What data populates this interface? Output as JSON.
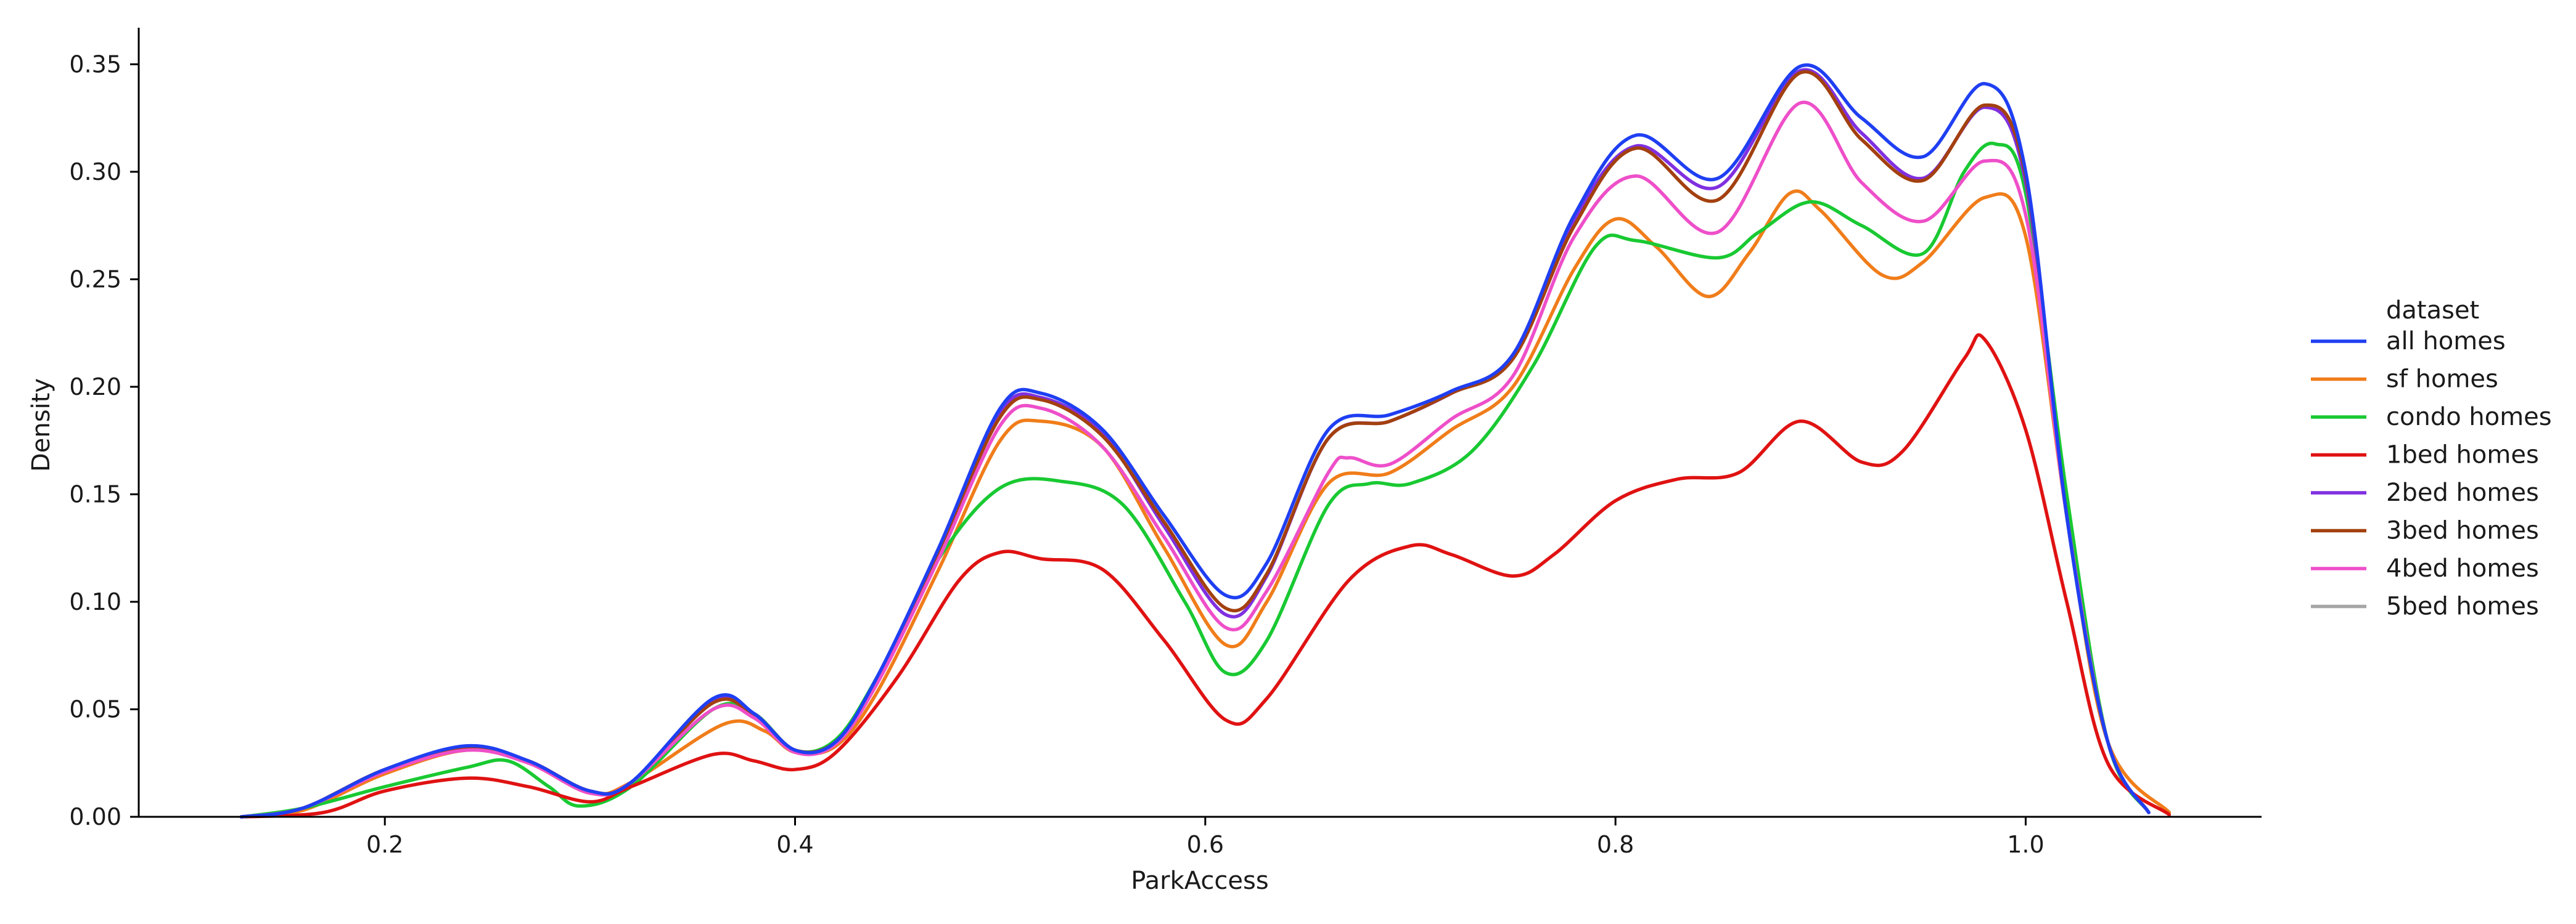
{
  "chart_data": {
    "type": "line",
    "xlabel": "ParkAccess",
    "ylabel": "Density",
    "xlim": [
      0.08,
      1.115
    ],
    "ylim": [
      0,
      0.367
    ],
    "xticks": [
      0.2,
      0.4,
      0.6,
      0.8,
      1.0
    ],
    "xtick_labels": [
      "0.2",
      "0.4",
      "0.6",
      "0.8",
      "1.0"
    ],
    "yticks": [
      0.0,
      0.05,
      0.1,
      0.15,
      0.2,
      0.25,
      0.3,
      0.35
    ],
    "ytick_labels": [
      "0.00",
      "0.05",
      "0.10",
      "0.15",
      "0.20",
      "0.25",
      "0.30",
      "0.35"
    ],
    "grid": false,
    "legend": {
      "title": "dataset",
      "placement": "center-right outside"
    },
    "series": [
      {
        "name": "all homes",
        "color": "#1f3ff2",
        "points": [
          [
            0.13,
            0.0
          ],
          [
            0.16,
            0.004
          ],
          [
            0.2,
            0.022
          ],
          [
            0.24,
            0.033
          ],
          [
            0.27,
            0.026
          ],
          [
            0.3,
            0.012
          ],
          [
            0.32,
            0.016
          ],
          [
            0.36,
            0.055
          ],
          [
            0.38,
            0.048
          ],
          [
            0.4,
            0.031
          ],
          [
            0.42,
            0.035
          ],
          [
            0.44,
            0.065
          ],
          [
            0.47,
            0.125
          ],
          [
            0.5,
            0.19
          ],
          [
            0.52,
            0.197
          ],
          [
            0.55,
            0.18
          ],
          [
            0.58,
            0.14
          ],
          [
            0.61,
            0.103
          ],
          [
            0.63,
            0.118
          ],
          [
            0.66,
            0.18
          ],
          [
            0.69,
            0.187
          ],
          [
            0.72,
            0.198
          ],
          [
            0.75,
            0.215
          ],
          [
            0.78,
            0.28
          ],
          [
            0.81,
            0.317
          ],
          [
            0.85,
            0.297
          ],
          [
            0.89,
            0.349
          ],
          [
            0.92,
            0.325
          ],
          [
            0.95,
            0.307
          ],
          [
            0.98,
            0.341
          ],
          [
            1.0,
            0.3
          ],
          [
            1.02,
            0.14
          ],
          [
            1.04,
            0.035
          ],
          [
            1.06,
            0.002
          ]
        ]
      },
      {
        "name": "sf homes",
        "color": "#f07d1a",
        "points": [
          [
            0.13,
            0.0
          ],
          [
            0.16,
            0.003
          ],
          [
            0.2,
            0.02
          ],
          [
            0.24,
            0.031
          ],
          [
            0.27,
            0.025
          ],
          [
            0.3,
            0.011
          ],
          [
            0.32,
            0.016
          ],
          [
            0.365,
            0.043
          ],
          [
            0.385,
            0.04
          ],
          [
            0.4,
            0.03
          ],
          [
            0.42,
            0.033
          ],
          [
            0.44,
            0.058
          ],
          [
            0.47,
            0.115
          ],
          [
            0.5,
            0.175
          ],
          [
            0.52,
            0.184
          ],
          [
            0.55,
            0.172
          ],
          [
            0.58,
            0.125
          ],
          [
            0.61,
            0.08
          ],
          [
            0.63,
            0.1
          ],
          [
            0.66,
            0.155
          ],
          [
            0.69,
            0.16
          ],
          [
            0.72,
            0.18
          ],
          [
            0.75,
            0.2
          ],
          [
            0.78,
            0.255
          ],
          [
            0.8,
            0.278
          ],
          [
            0.82,
            0.265
          ],
          [
            0.845,
            0.242
          ],
          [
            0.865,
            0.262
          ],
          [
            0.885,
            0.29
          ],
          [
            0.9,
            0.282
          ],
          [
            0.93,
            0.252
          ],
          [
            0.95,
            0.258
          ],
          [
            0.98,
            0.288
          ],
          [
            1.0,
            0.27
          ],
          [
            1.02,
            0.14
          ],
          [
            1.04,
            0.035
          ],
          [
            1.07,
            0.002
          ]
        ]
      },
      {
        "name": "condo homes",
        "color": "#19c932",
        "points": [
          [
            0.13,
            0.0
          ],
          [
            0.16,
            0.004
          ],
          [
            0.2,
            0.014
          ],
          [
            0.24,
            0.023
          ],
          [
            0.26,
            0.026
          ],
          [
            0.28,
            0.014
          ],
          [
            0.295,
            0.005
          ],
          [
            0.32,
            0.014
          ],
          [
            0.36,
            0.05
          ],
          [
            0.38,
            0.048
          ],
          [
            0.4,
            0.031
          ],
          [
            0.42,
            0.036
          ],
          [
            0.44,
            0.065
          ],
          [
            0.47,
            0.12
          ],
          [
            0.5,
            0.153
          ],
          [
            0.53,
            0.156
          ],
          [
            0.56,
            0.145
          ],
          [
            0.59,
            0.1
          ],
          [
            0.61,
            0.067
          ],
          [
            0.63,
            0.082
          ],
          [
            0.66,
            0.145
          ],
          [
            0.68,
            0.155
          ],
          [
            0.7,
            0.155
          ],
          [
            0.73,
            0.17
          ],
          [
            0.76,
            0.21
          ],
          [
            0.79,
            0.265
          ],
          [
            0.81,
            0.268
          ],
          [
            0.85,
            0.26
          ],
          [
            0.87,
            0.272
          ],
          [
            0.895,
            0.286
          ],
          [
            0.92,
            0.275
          ],
          [
            0.95,
            0.262
          ],
          [
            0.97,
            0.3
          ],
          [
            0.985,
            0.313
          ],
          [
            1.0,
            0.29
          ],
          [
            1.02,
            0.15
          ],
          [
            1.04,
            0.035
          ],
          [
            1.06,
            0.002
          ]
        ]
      },
      {
        "name": "1bed homes",
        "color": "#e01212",
        "points": [
          [
            0.13,
            0.0
          ],
          [
            0.17,
            0.002
          ],
          [
            0.2,
            0.012
          ],
          [
            0.24,
            0.018
          ],
          [
            0.27,
            0.014
          ],
          [
            0.3,
            0.007
          ],
          [
            0.32,
            0.014
          ],
          [
            0.36,
            0.029
          ],
          [
            0.38,
            0.026
          ],
          [
            0.4,
            0.022
          ],
          [
            0.42,
            0.03
          ],
          [
            0.45,
            0.065
          ],
          [
            0.48,
            0.11
          ],
          [
            0.5,
            0.123
          ],
          [
            0.52,
            0.12
          ],
          [
            0.55,
            0.115
          ],
          [
            0.58,
            0.082
          ],
          [
            0.61,
            0.045
          ],
          [
            0.63,
            0.055
          ],
          [
            0.67,
            0.11
          ],
          [
            0.7,
            0.126
          ],
          [
            0.72,
            0.122
          ],
          [
            0.75,
            0.112
          ],
          [
            0.77,
            0.122
          ],
          [
            0.8,
            0.147
          ],
          [
            0.83,
            0.157
          ],
          [
            0.86,
            0.16
          ],
          [
            0.89,
            0.184
          ],
          [
            0.92,
            0.165
          ],
          [
            0.94,
            0.17
          ],
          [
            0.97,
            0.213
          ],
          [
            0.98,
            0.222
          ],
          [
            1.0,
            0.18
          ],
          [
            1.02,
            0.1
          ],
          [
            1.04,
            0.025
          ],
          [
            1.07,
            0.001
          ]
        ]
      },
      {
        "name": "2bed homes",
        "color": "#8030e0",
        "points": [
          [
            0.13,
            0.0
          ],
          [
            0.16,
            0.004
          ],
          [
            0.2,
            0.022
          ],
          [
            0.24,
            0.032
          ],
          [
            0.27,
            0.026
          ],
          [
            0.3,
            0.012
          ],
          [
            0.32,
            0.016
          ],
          [
            0.36,
            0.054
          ],
          [
            0.38,
            0.048
          ],
          [
            0.4,
            0.031
          ],
          [
            0.42,
            0.035
          ],
          [
            0.44,
            0.064
          ],
          [
            0.47,
            0.124
          ],
          [
            0.5,
            0.188
          ],
          [
            0.52,
            0.195
          ],
          [
            0.55,
            0.178
          ],
          [
            0.58,
            0.135
          ],
          [
            0.61,
            0.094
          ],
          [
            0.63,
            0.112
          ],
          [
            0.66,
            0.176
          ],
          [
            0.69,
            0.184
          ],
          [
            0.72,
            0.197
          ],
          [
            0.75,
            0.214
          ],
          [
            0.78,
            0.278
          ],
          [
            0.81,
            0.312
          ],
          [
            0.85,
            0.293
          ],
          [
            0.89,
            0.347
          ],
          [
            0.92,
            0.318
          ],
          [
            0.95,
            0.297
          ],
          [
            0.98,
            0.33
          ],
          [
            1.0,
            0.295
          ],
          [
            1.02,
            0.14
          ],
          [
            1.04,
            0.035
          ],
          [
            1.06,
            0.002
          ]
        ]
      },
      {
        "name": "3bed homes",
        "color": "#a3400f",
        "points": [
          [
            0.13,
            0.0
          ],
          [
            0.16,
            0.004
          ],
          [
            0.2,
            0.022
          ],
          [
            0.24,
            0.032
          ],
          [
            0.27,
            0.026
          ],
          [
            0.3,
            0.012
          ],
          [
            0.32,
            0.016
          ],
          [
            0.36,
            0.053
          ],
          [
            0.38,
            0.047
          ],
          [
            0.4,
            0.031
          ],
          [
            0.42,
            0.035
          ],
          [
            0.44,
            0.063
          ],
          [
            0.47,
            0.123
          ],
          [
            0.5,
            0.186
          ],
          [
            0.52,
            0.194
          ],
          [
            0.55,
            0.177
          ],
          [
            0.58,
            0.137
          ],
          [
            0.61,
            0.097
          ],
          [
            0.63,
            0.113
          ],
          [
            0.66,
            0.176
          ],
          [
            0.69,
            0.184
          ],
          [
            0.72,
            0.197
          ],
          [
            0.75,
            0.213
          ],
          [
            0.78,
            0.275
          ],
          [
            0.81,
            0.311
          ],
          [
            0.85,
            0.287
          ],
          [
            0.89,
            0.346
          ],
          [
            0.92,
            0.315
          ],
          [
            0.95,
            0.296
          ],
          [
            0.98,
            0.331
          ],
          [
            1.0,
            0.298
          ],
          [
            1.02,
            0.14
          ],
          [
            1.04,
            0.035
          ],
          [
            1.06,
            0.002
          ]
        ]
      },
      {
        "name": "4bed homes",
        "color": "#ee4fc9",
        "points": [
          [
            0.13,
            0.0
          ],
          [
            0.16,
            0.004
          ],
          [
            0.2,
            0.021
          ],
          [
            0.24,
            0.031
          ],
          [
            0.27,
            0.025
          ],
          [
            0.3,
            0.011
          ],
          [
            0.32,
            0.016
          ],
          [
            0.36,
            0.05
          ],
          [
            0.38,
            0.046
          ],
          [
            0.4,
            0.03
          ],
          [
            0.42,
            0.034
          ],
          [
            0.44,
            0.062
          ],
          [
            0.47,
            0.12
          ],
          [
            0.5,
            0.182
          ],
          [
            0.52,
            0.19
          ],
          [
            0.55,
            0.172
          ],
          [
            0.58,
            0.13
          ],
          [
            0.61,
            0.088
          ],
          [
            0.63,
            0.105
          ],
          [
            0.66,
            0.16
          ],
          [
            0.67,
            0.167
          ],
          [
            0.69,
            0.164
          ],
          [
            0.72,
            0.185
          ],
          [
            0.75,
            0.205
          ],
          [
            0.78,
            0.27
          ],
          [
            0.81,
            0.298
          ],
          [
            0.85,
            0.272
          ],
          [
            0.89,
            0.332
          ],
          [
            0.92,
            0.295
          ],
          [
            0.95,
            0.277
          ],
          [
            0.98,
            0.305
          ],
          [
            1.0,
            0.28
          ],
          [
            1.02,
            0.14
          ],
          [
            1.04,
            0.035
          ],
          [
            1.06,
            0.002
          ]
        ]
      },
      {
        "name": "5bed homes",
        "color": "#a6a6a6",
        "points": []
      }
    ]
  }
}
